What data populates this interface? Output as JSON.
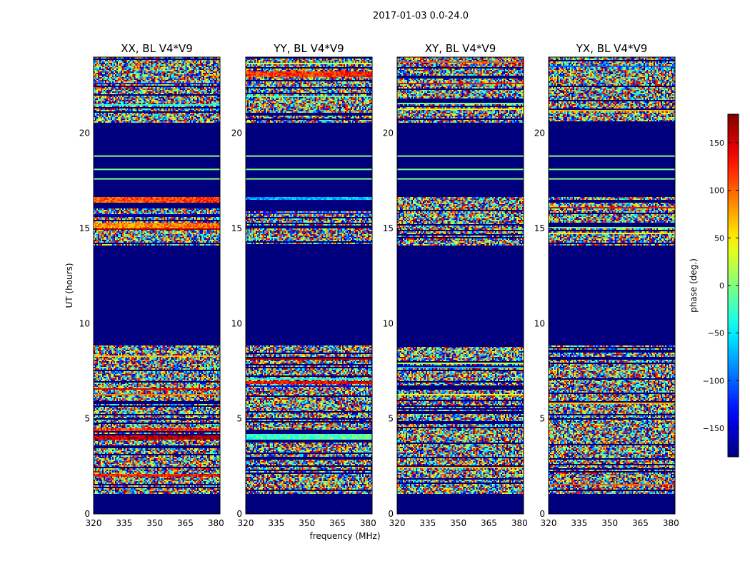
{
  "figure": {
    "suptitle": "2017-01-03 0.0-24.0"
  },
  "colors": {
    "background_masked": "#00007f",
    "colormap": [
      "#00007f",
      "#0000ff",
      "#007fff",
      "#00ffff",
      "#7fff7f",
      "#ffff00",
      "#ff7f00",
      "#ff0000",
      "#7f0000"
    ]
  },
  "chart_data": [
    {
      "type": "heatmap",
      "title": "XX, BL V4*V9",
      "xlabel": "",
      "ylabel": "UT (hours)",
      "x_ticks": [
        "320",
        "335",
        "350",
        "365",
        "380"
      ],
      "y_ticks": [
        "0",
        "5",
        "10",
        "15",
        "20"
      ],
      "xlim": [
        320,
        382
      ],
      "ylim": [
        0,
        24
      ],
      "value_range": [
        -180,
        180
      ],
      "value_bands": [
        {
          "from": 0.0,
          "to": 1.1,
          "mode": "masked"
        },
        {
          "from": 1.1,
          "to": 2.0,
          "mode": "noise"
        },
        {
          "from": 2.0,
          "to": 2.1,
          "mode": "gradient",
          "mean": 120
        },
        {
          "from": 2.1,
          "to": 3.9,
          "mode": "noise"
        },
        {
          "from": 3.9,
          "to": 4.15,
          "mode": "gradient",
          "mean": 150
        },
        {
          "from": 4.15,
          "to": 4.4,
          "mode": "noise"
        },
        {
          "from": 4.4,
          "to": 4.55,
          "mode": "gradient",
          "mean": 110
        },
        {
          "from": 4.55,
          "to": 5.8,
          "mode": "noise"
        },
        {
          "from": 5.8,
          "to": 8.9,
          "mode": "noise"
        },
        {
          "from": 8.9,
          "to": 14.1,
          "mode": "masked"
        },
        {
          "from": 14.1,
          "to": 16.1,
          "mode": "noise"
        },
        {
          "from": 15.05,
          "to": 15.25,
          "mode": "gradient",
          "mean": 80
        },
        {
          "from": 16.1,
          "to": 16.4,
          "mode": "masked"
        },
        {
          "from": 16.4,
          "to": 16.7,
          "mode": "gradient",
          "mean": 100
        },
        {
          "from": 16.7,
          "to": 20.6,
          "mode": "masked"
        },
        {
          "from": 20.6,
          "to": 24.0,
          "mode": "noise"
        }
      ],
      "horizontal_lines": [
        17.6,
        18.1,
        18.8
      ]
    },
    {
      "type": "heatmap",
      "title": "YY, BL V4*V9",
      "xlabel": "frequency (MHz)",
      "ylabel": "",
      "x_ticks": [
        "320",
        "335",
        "350",
        "365",
        "380"
      ],
      "y_ticks": [
        "0",
        "5",
        "10",
        "15",
        "20"
      ],
      "xlim": [
        320,
        382
      ],
      "ylim": [
        0,
        24
      ],
      "value_range": [
        -180,
        180
      ],
      "value_bands": [
        {
          "from": 0.0,
          "to": 1.1,
          "mode": "masked"
        },
        {
          "from": 1.1,
          "to": 3.7,
          "mode": "noise"
        },
        {
          "from": 3.9,
          "to": 4.2,
          "mode": "gradient",
          "mean": -30
        },
        {
          "from": 4.2,
          "to": 4.5,
          "mode": "noise"
        },
        {
          "from": 4.5,
          "to": 5.8,
          "mode": "noise"
        },
        {
          "from": 6.8,
          "to": 7.0,
          "mode": "gradient",
          "mean": 130
        },
        {
          "from": 5.8,
          "to": 6.8,
          "mode": "noise"
        },
        {
          "from": 7.0,
          "to": 8.9,
          "mode": "noise"
        },
        {
          "from": 8.9,
          "to": 14.1,
          "mode": "masked"
        },
        {
          "from": 14.1,
          "to": 16.1,
          "mode": "noise"
        },
        {
          "from": 16.1,
          "to": 16.5,
          "mode": "masked"
        },
        {
          "from": 16.5,
          "to": 16.7,
          "mode": "gradient",
          "mean": -80
        },
        {
          "from": 16.7,
          "to": 20.6,
          "mode": "masked"
        },
        {
          "from": 20.6,
          "to": 22.0,
          "mode": "noise"
        },
        {
          "from": 22.0,
          "to": 24.0,
          "mode": "noise"
        },
        {
          "from": 23.0,
          "to": 23.2,
          "mode": "gradient",
          "mean": 110
        }
      ],
      "horizontal_lines": [
        17.6,
        18.1,
        18.8
      ]
    },
    {
      "type": "heatmap",
      "title": "XY, BL V4*V9",
      "xlabel": "",
      "ylabel": "",
      "x_ticks": [
        "320",
        "335",
        "350",
        "365",
        "380"
      ],
      "y_ticks": [
        "0",
        "5",
        "10",
        "15",
        "20"
      ],
      "xlim": [
        320,
        382
      ],
      "ylim": [
        0,
        24
      ],
      "value_range": [
        -180,
        180
      ],
      "value_bands": [
        {
          "from": 0.0,
          "to": 1.1,
          "mode": "masked"
        },
        {
          "from": 1.1,
          "to": 8.9,
          "mode": "noise"
        },
        {
          "from": 8.9,
          "to": 14.1,
          "mode": "masked"
        },
        {
          "from": 14.1,
          "to": 16.7,
          "mode": "noise"
        },
        {
          "from": 16.7,
          "to": 20.6,
          "mode": "masked"
        },
        {
          "from": 20.6,
          "to": 24.0,
          "mode": "noise"
        }
      ],
      "horizontal_lines": [
        17.6,
        18.1,
        18.8
      ]
    },
    {
      "type": "heatmap",
      "title": "YX, BL V4*V9",
      "xlabel": "",
      "ylabel": "",
      "x_ticks": [
        "320",
        "335",
        "350",
        "365",
        "380"
      ],
      "y_ticks": [
        "0",
        "5",
        "10",
        "15",
        "20"
      ],
      "xlim": [
        320,
        382
      ],
      "ylim": [
        0,
        24
      ],
      "value_range": [
        -180,
        180
      ],
      "value_bands": [
        {
          "from": 0.0,
          "to": 1.1,
          "mode": "masked"
        },
        {
          "from": 1.1,
          "to": 8.9,
          "mode": "noise"
        },
        {
          "from": 8.9,
          "to": 14.1,
          "mode": "masked"
        },
        {
          "from": 14.1,
          "to": 16.7,
          "mode": "noise"
        },
        {
          "from": 16.7,
          "to": 20.6,
          "mode": "masked"
        },
        {
          "from": 20.6,
          "to": 24.0,
          "mode": "noise"
        }
      ],
      "horizontal_lines": [
        17.6,
        18.1,
        18.8
      ]
    }
  ],
  "colorbar": {
    "label": "phase (deg.)",
    "range": [
      -180,
      180
    ],
    "ticks": [
      "150",
      "100",
      "50",
      "0",
      "−50",
      "−100",
      "−150"
    ],
    "tick_values": [
      150,
      100,
      50,
      0,
      -50,
      -100,
      -150
    ]
  }
}
